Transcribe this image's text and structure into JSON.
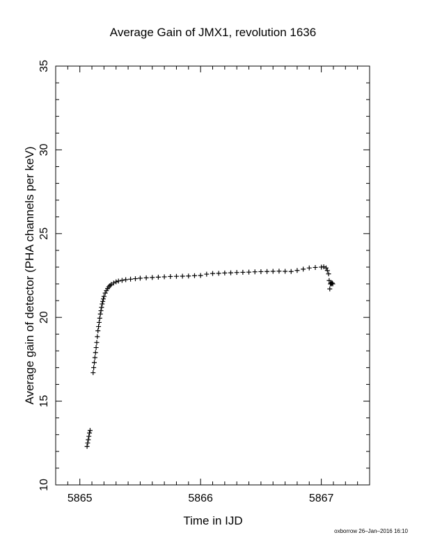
{
  "chart_data": {
    "type": "scatter",
    "title": "Average Gain of JMX1, revolution 1636",
    "xlabel": "Time in IJD",
    "ylabel": "Average gain of detector (PHA channels per keV)",
    "xlim": [
      5864.8,
      5867.4
    ],
    "ylim": [
      10,
      35
    ],
    "xticks": [
      5865,
      5866,
      5867
    ],
    "yticks": [
      10,
      15,
      20,
      25,
      30,
      35
    ],
    "marker": "plus",
    "grid": false,
    "series": [
      {
        "points": [
          [
            5865.06,
            12.3
          ],
          [
            5865.065,
            12.5
          ],
          [
            5865.07,
            12.7
          ],
          [
            5865.075,
            12.9
          ],
          [
            5865.08,
            13.1
          ],
          [
            5865.085,
            13.25
          ],
          [
            5865.11,
            16.7
          ],
          [
            5865.115,
            17.0
          ],
          [
            5865.12,
            17.3
          ],
          [
            5865.125,
            17.6
          ],
          [
            5865.13,
            17.9
          ],
          [
            5865.135,
            18.2
          ],
          [
            5865.14,
            18.5
          ],
          [
            5865.145,
            18.85
          ],
          [
            5865.15,
            19.2
          ],
          [
            5865.155,
            19.45
          ],
          [
            5865.16,
            19.7
          ],
          [
            5865.165,
            19.95
          ],
          [
            5865.17,
            20.2
          ],
          [
            5865.175,
            20.4
          ],
          [
            5865.18,
            20.6
          ],
          [
            5865.185,
            20.8
          ],
          [
            5865.19,
            20.95
          ],
          [
            5865.195,
            21.1
          ],
          [
            5865.2,
            21.25
          ],
          [
            5865.21,
            21.45
          ],
          [
            5865.22,
            21.6
          ],
          [
            5865.23,
            21.72
          ],
          [
            5865.24,
            21.82
          ],
          [
            5865.25,
            21.9
          ],
          [
            5865.26,
            21.97
          ],
          [
            5865.28,
            22.05
          ],
          [
            5865.3,
            22.12
          ],
          [
            5865.32,
            22.17
          ],
          [
            5865.35,
            22.21
          ],
          [
            5865.38,
            22.25
          ],
          [
            5865.42,
            22.28
          ],
          [
            5865.46,
            22.31
          ],
          [
            5865.5,
            22.34
          ],
          [
            5865.55,
            22.36
          ],
          [
            5865.6,
            22.38
          ],
          [
            5865.65,
            22.4
          ],
          [
            5865.7,
            22.42
          ],
          [
            5865.75,
            22.44
          ],
          [
            5865.8,
            22.45
          ],
          [
            5865.85,
            22.46
          ],
          [
            5865.9,
            22.47
          ],
          [
            5865.95,
            22.49
          ],
          [
            5866.0,
            22.5
          ],
          [
            5866.05,
            22.58
          ],
          [
            5866.1,
            22.62
          ],
          [
            5866.15,
            22.63
          ],
          [
            5866.2,
            22.65
          ],
          [
            5866.25,
            22.66
          ],
          [
            5866.3,
            22.68
          ],
          [
            5866.35,
            22.69
          ],
          [
            5866.4,
            22.7
          ],
          [
            5866.45,
            22.72
          ],
          [
            5866.5,
            22.73
          ],
          [
            5866.55,
            22.74
          ],
          [
            5866.6,
            22.75
          ],
          [
            5866.65,
            22.76
          ],
          [
            5866.7,
            22.75
          ],
          [
            5866.75,
            22.74
          ],
          [
            5866.8,
            22.8
          ],
          [
            5866.85,
            22.88
          ],
          [
            5866.9,
            22.95
          ],
          [
            5866.95,
            22.98
          ],
          [
            5867.0,
            23.0
          ],
          [
            5867.02,
            23.02
          ],
          [
            5867.04,
            22.95
          ],
          [
            5867.05,
            22.8
          ],
          [
            5867.06,
            22.6
          ],
          [
            5867.065,
            22.2
          ],
          [
            5867.07,
            21.7
          ],
          [
            5867.075,
            22.0
          ],
          [
            5867.08,
            22.05
          ],
          [
            5867.085,
            22.0
          ],
          [
            5867.09,
            22.05
          ],
          [
            5867.095,
            22.0
          ]
        ]
      }
    ]
  },
  "footer": {
    "stamp": "oxborrow 26–Jan–2016 16:10"
  }
}
